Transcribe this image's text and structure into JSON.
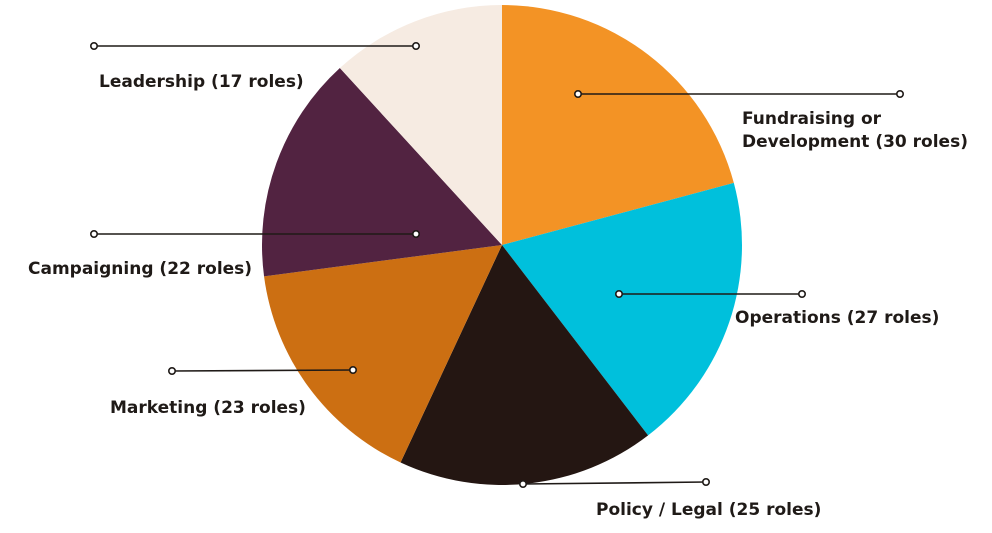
{
  "chart_data": {
    "type": "pie",
    "unit": "roles",
    "slices": [
      {
        "label_lines": [
          "Fundraising or",
          "Development (30 roles)"
        ],
        "value": 30,
        "color": "#f39325"
      },
      {
        "label_lines": [
          "Operations (27 roles)"
        ],
        "value": 27,
        "color": "#00c0dc"
      },
      {
        "label_lines": [
          "Policy / Legal (25 roles)"
        ],
        "value": 25,
        "color": "#241612"
      },
      {
        "label_lines": [
          "Marketing (23 roles)"
        ],
        "value": 23,
        "color": "#cc6f12"
      },
      {
        "label_lines": [
          "Campaigning (22 roles)"
        ],
        "value": 22,
        "color": "#522341"
      },
      {
        "label_lines": [
          "Leadership (17 roles)"
        ],
        "value": 17,
        "color": "#f6ebe2"
      }
    ]
  }
}
